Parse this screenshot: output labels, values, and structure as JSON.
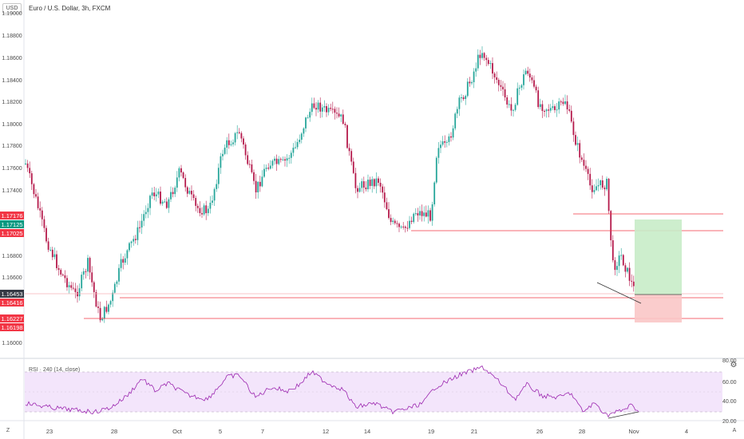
{
  "symbol": {
    "title": "Euro / U.S. Dollar, 3h, FXCM"
  },
  "currency_badge": "USD",
  "price_axis": {
    "ticks": [
      "1.19000",
      "1.18800",
      "1.18600",
      "1.18400",
      "1.18200",
      "1.18000",
      "1.17800",
      "1.17600",
      "1.17400",
      "1.16800",
      "1.16600",
      "1.16000"
    ],
    "labels": [
      {
        "text": "1.17176",
        "color": "#f23645"
      },
      {
        "text": "1.17125",
        "color": "#089981"
      },
      {
        "text": "1.17025",
        "color": "#f23645"
      },
      {
        "text": "1.16453",
        "color": "#363a45"
      },
      {
        "text": "1.16416",
        "color": "#f23645"
      },
      {
        "text": "1.16227",
        "color": "#f23645"
      },
      {
        "text": "1.16198",
        "color": "#f23645"
      }
    ]
  },
  "rsi": {
    "legend": "RSI · 240 (14, close)",
    "ticks": [
      "80.00",
      "60.00",
      "40.00",
      "20.00"
    ]
  },
  "time_axis": {
    "ticks": [
      "23",
      "28",
      "Oct",
      "5",
      "7",
      "12",
      "14",
      "19",
      "21",
      "26",
      "28",
      "Nov",
      "4"
    ]
  },
  "buttons": {
    "z": "Z",
    "a": "A",
    "gear": "⚙"
  },
  "colors": {
    "up": "#26a69a",
    "down": "#b5194b",
    "line": "#f23645",
    "profit": "#c8ecc8",
    "loss": "#f9c6c6",
    "rsi": "#9c27b0",
    "rsi_band": "#f3e5fb"
  }
}
